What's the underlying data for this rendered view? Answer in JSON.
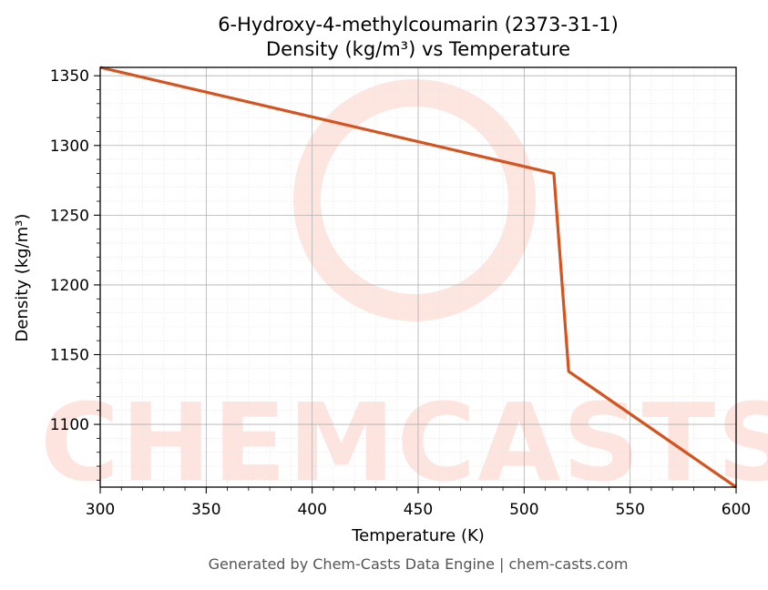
{
  "chart_data": {
    "type": "line",
    "title_line1": "6-Hydroxy-4-methylcoumarin (2373-31-1)",
    "title_line2": "Density (kg/m³) vs Temperature",
    "xlabel": "Temperature (K)",
    "ylabel": "Density (kg/m³)",
    "xlim": [
      300,
      600
    ],
    "ylim": [
      1055,
      1356
    ],
    "x_ticks": [
      300,
      350,
      400,
      450,
      500,
      550,
      600
    ],
    "y_ticks": [
      1100,
      1150,
      1200,
      1250,
      1300,
      1350
    ],
    "grid": true,
    "series": [
      {
        "color": "#d5531f",
        "x": [
          300,
          514,
          521,
          600
        ],
        "y": [
          1356,
          1280,
          1138,
          1055
        ]
      }
    ]
  },
  "watermark": {
    "text": "CHEMCASTS",
    "color": "#fde0da"
  },
  "footer": "Generated by Chem-Casts Data Engine | chem-casts.com"
}
